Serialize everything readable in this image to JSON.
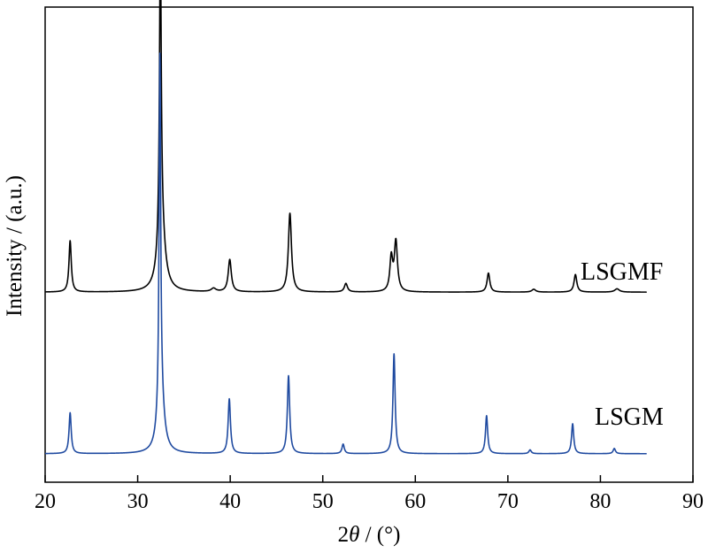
{
  "chart_data": {
    "type": "line",
    "title": "",
    "xlabel_prefix": "2",
    "xlabel_symbol": "θ",
    "xlabel_suffix": " / (°)",
    "ylabel": "Intensity / (a.u.)",
    "xlim": [
      20,
      90
    ],
    "ylim": [
      0,
      100
    ],
    "x_ticks": [
      20,
      30,
      40,
      50,
      60,
      70,
      80,
      90
    ],
    "y_ticks_shown": false,
    "grid": false,
    "legend": "none",
    "series": [
      {
        "name": "LSGMF",
        "color": "#000000",
        "offset": 40,
        "x_range": [
          20,
          85
        ],
        "peaks": [
          {
            "x": 22.7,
            "height": 10.8,
            "width": 0.15
          },
          {
            "x": 32.45,
            "height": 62.6,
            "width": 0.11
          },
          {
            "x": 32.55,
            "height": 14.0,
            "width": 0.45
          },
          {
            "x": 38.2,
            "height": 0.7,
            "width": 0.3
          },
          {
            "x": 39.95,
            "height": 6.8,
            "width": 0.2
          },
          {
            "x": 46.45,
            "height": 16.6,
            "width": 0.2
          },
          {
            "x": 52.5,
            "height": 1.8,
            "width": 0.2
          },
          {
            "x": 57.4,
            "height": 7.0,
            "width": 0.18
          },
          {
            "x": 57.9,
            "height": 10.5,
            "width": 0.2
          },
          {
            "x": 67.9,
            "height": 4.0,
            "width": 0.18
          },
          {
            "x": 72.8,
            "height": 0.6,
            "width": 0.25
          },
          {
            "x": 77.3,
            "height": 3.7,
            "width": 0.18
          },
          {
            "x": 81.8,
            "height": 0.7,
            "width": 0.3
          }
        ]
      },
      {
        "name": "LSGM",
        "color": "#1f4aa0",
        "offset": 6,
        "x_range": [
          20,
          85
        ],
        "peaks": [
          {
            "x": 22.7,
            "height": 8.6,
            "width": 0.14
          },
          {
            "x": 32.4,
            "height": 73.0,
            "width": 0.1
          },
          {
            "x": 32.5,
            "height": 12.0,
            "width": 0.4
          },
          {
            "x": 39.9,
            "height": 11.5,
            "width": 0.15
          },
          {
            "x": 46.3,
            "height": 16.4,
            "width": 0.15
          },
          {
            "x": 52.2,
            "height": 2.0,
            "width": 0.15
          },
          {
            "x": 57.7,
            "height": 21.0,
            "width": 0.14
          },
          {
            "x": 67.7,
            "height": 8.0,
            "width": 0.14
          },
          {
            "x": 72.4,
            "height": 0.8,
            "width": 0.15
          },
          {
            "x": 77.0,
            "height": 6.3,
            "width": 0.14
          },
          {
            "x": 81.5,
            "height": 1.1,
            "width": 0.15
          }
        ]
      }
    ]
  }
}
